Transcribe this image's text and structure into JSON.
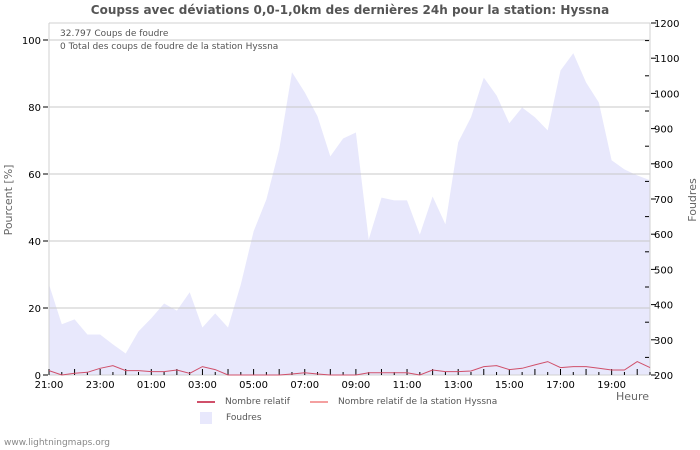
{
  "title": "Coupss avec déviations 0,0-1,0km des dernières 24h pour la station: Hyssna",
  "info": {
    "line1": "32.797  Coups de foudre",
    "line2": "0 Total des coups de foudre de la station Hyssna"
  },
  "left_axis_title": "Pourcent   [%]",
  "right_axis_title": "Foudres",
  "x_axis_title": "Heure",
  "footer": "www.lightningmaps.org",
  "legend": {
    "relative": "Nombre relatif",
    "station_relative": "Nombre relatif de la station Hyssna",
    "strikes": "Foudres"
  },
  "colors": {
    "area": "#e8e8fc",
    "relative_line": "#d0506a",
    "station_line": "#f4a0a0",
    "grid": "#c8c8c8"
  },
  "chart_data": {
    "type": "line",
    "title": "Coupss avec déviations 0,0-1,0km des dernières 24h pour la station: Hyssna",
    "xlabel": "Heure",
    "ylabel": "Pourcent [%]",
    "y2label": "Foudres",
    "ylim": [
      0,
      105
    ],
    "y2lim": [
      200,
      1200
    ],
    "x_tick_labels": [
      "21:00",
      "23:00",
      "01:00",
      "03:00",
      "05:00",
      "07:00",
      "09:00",
      "11:00",
      "13:00",
      "15:00",
      "17:00",
      "19:00"
    ],
    "left_ticks": [
      0,
      20,
      40,
      60,
      80,
      100
    ],
    "right_ticks": [
      200,
      300,
      400,
      500,
      600,
      700,
      800,
      900,
      1000,
      1100,
      1200
    ],
    "grid": true,
    "legend_position": "bottom",
    "x": [
      "21:00",
      "21:30",
      "22:00",
      "22:30",
      "23:00",
      "23:30",
      "00:00",
      "00:30",
      "01:00",
      "01:30",
      "02:00",
      "02:30",
      "03:00",
      "03:30",
      "04:00",
      "04:30",
      "05:00",
      "05:30",
      "06:00",
      "06:30",
      "07:00",
      "07:30",
      "08:00",
      "08:30",
      "09:00",
      "09:30",
      "10:00",
      "10:30",
      "11:00",
      "11:30",
      "12:00",
      "12:30",
      "13:00",
      "13:30",
      "14:00",
      "14:30",
      "15:00",
      "15:30",
      "16:00",
      "16:30",
      "17:00",
      "17:30",
      "18:00",
      "18:30",
      "19:00",
      "19:30",
      "20:00",
      "20:30"
    ],
    "series": [
      {
        "name": "Foudres",
        "axis": "right",
        "type": "area",
        "values": [
          457,
          344,
          358,
          315,
          315,
          287,
          261,
          324,
          361,
          403,
          383,
          435,
          335,
          375,
          335,
          457,
          608,
          699,
          841,
          1060,
          1003,
          935,
          821,
          872,
          889,
          585,
          704,
          696,
          696,
          599,
          707,
          628,
          861,
          932,
          1045,
          994,
          915,
          960,
          932,
          895,
          1065,
          1114,
          1031,
          974,
          810,
          784,
          767,
          753
        ]
      },
      {
        "name": "Nombre relatif",
        "axis": "left",
        "type": "line",
        "values": [
          1.3,
          0,
          0.5,
          0.8,
          2.0,
          2.8,
          1.3,
          1.3,
          1.0,
          1.0,
          1.5,
          0.5,
          2.5,
          1.6,
          0,
          0,
          0,
          0,
          0,
          0.3,
          0.7,
          0.3,
          0,
          0,
          0,
          0.7,
          0.7,
          0.7,
          0.7,
          0,
          1.5,
          1.0,
          1.0,
          1.2,
          2.5,
          2.8,
          1.6,
          2.0,
          3.0,
          4.0,
          2.2,
          2.5,
          2.5,
          2.0,
          1.5,
          1.5,
          4.0,
          2.2
        ]
      },
      {
        "name": "Nombre relatif de la station Hyssna",
        "axis": "left",
        "type": "line",
        "values": []
      }
    ]
  }
}
